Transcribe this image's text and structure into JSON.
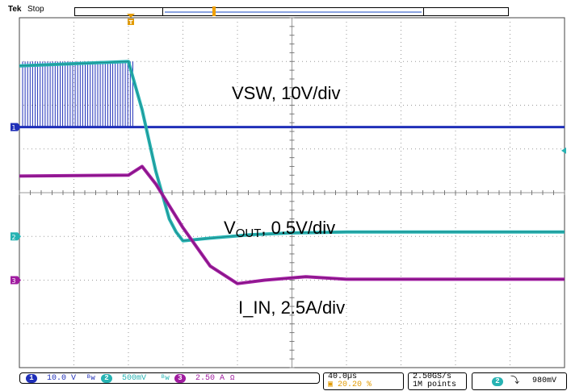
{
  "header": {
    "brand": "Tek",
    "status": "Stop"
  },
  "chart_data": {
    "type": "line",
    "title": "",
    "xlabel": "",
    "ylabel": "",
    "grid": true,
    "divisions": {
      "x": 10,
      "y": 8
    },
    "x_unit": "µs",
    "xlim": [
      -80,
      320
    ],
    "series": [
      {
        "name": "VSW, 10V/div",
        "channel": "1",
        "color": "#1f2fb8",
        "unit": "V",
        "scale_per_div": 10,
        "x": [
          -80,
          5,
          6,
          320
        ],
        "y": [
          15,
          15,
          0,
          0
        ],
        "note_band_y": [
          0,
          0
        ]
      },
      {
        "name": "VOUT, 0.5V/div",
        "channel": "2",
        "color": "#27b3b3",
        "unit": "V",
        "scale_per_div": 0.5,
        "x": [
          -80,
          0,
          10,
          20,
          30,
          35,
          40,
          60,
          90,
          120,
          160,
          320
        ],
        "y": [
          1.95,
          2.0,
          1.45,
          0.75,
          0.2,
          0.05,
          -0.05,
          -0.02,
          0.02,
          0.04,
          0.05,
          0.05
        ]
      },
      {
        "name": "I_IN, 2.5A/div",
        "channel": "3",
        "color": "#a01ca0",
        "unit": "A",
        "scale_per_div": 2.5,
        "x": [
          -80,
          0,
          10,
          20,
          40,
          60,
          80,
          100,
          130,
          160,
          320
        ],
        "y": [
          5.95,
          6.0,
          6.5,
          5.5,
          3.0,
          0.8,
          -0.2,
          0.0,
          0.2,
          0.05,
          0.05
        ]
      }
    ]
  },
  "labels": {
    "vsw": "VSW, 10V/div",
    "vout_main": "V",
    "vout_sub": "OUT",
    "vout_rest": ", 0.5V/div",
    "iin": "I_IN, 2.5A/div"
  },
  "status": {
    "ch1_num": "1",
    "ch1": "10.0 V",
    "ch2_num": "2",
    "ch2": "500mV",
    "ch3_num": "3",
    "ch3": "2.50 A",
    "ch3_icon": "Ω",
    "timebase": "40.0µs",
    "trigger_pos": "20.20 %",
    "sample_rate": "2.50GS/s",
    "record_length": "1M points",
    "trig_ch": "2",
    "trig_level": "980mV"
  },
  "colors": {
    "ch1": "#1f2fb8",
    "ch2": "#27b3b3",
    "ch3": "#a01ca0",
    "trigger": "#e29a00",
    "grid": "#9a9a9a"
  }
}
